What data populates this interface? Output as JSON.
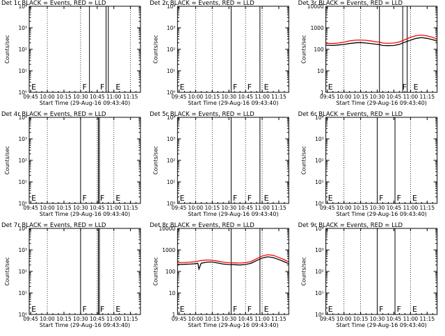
{
  "colors": {
    "background": "#ffffff",
    "axes": "#000000",
    "events": "#000000",
    "lld": "#ff0000",
    "guide": "#000000"
  },
  "chart_data": [
    {
      "type": "line",
      "title": "Det 1r  BLACK = Events, RED = LLD",
      "xlabel": "Start Time (29-Aug-16 09:43:40)",
      "ylabel": "Counts/sec",
      "yscale": "log",
      "ylim": [
        1,
        10000
      ],
      "yticklabels": [
        "10⁰",
        "10¹",
        "10²",
        "10³",
        "10⁴"
      ],
      "xlim": [
        "09:43:40",
        "11:24:00"
      ],
      "xticks": [
        "09:45",
        "10:00",
        "10:15",
        "10:30",
        "10:45",
        "11:00",
        "11:15"
      ],
      "dotted_lines": [
        "10:00",
        "10:30",
        "11:15"
      ],
      "solid_lines": [
        "10:38",
        "10:53",
        "10:55"
      ],
      "markers": [
        {
          "x": "09:45",
          "text": "E"
        },
        {
          "x": "10:31",
          "text": "F"
        },
        {
          "x": "10:47",
          "text": "F"
        },
        {
          "x": "11:01",
          "text": "E"
        }
      ],
      "series": []
    },
    {
      "type": "line",
      "title": "Det 2r  BLACK = Events, RED = LLD",
      "xlabel": "Start Time (29-Aug-16 09:43:40)",
      "ylabel": "Counts/sec",
      "yscale": "log",
      "ylim": [
        1,
        10000
      ],
      "yticklabels": [
        "10⁰",
        "10¹",
        "10²",
        "10³",
        "10⁴"
      ],
      "xlim": [
        "09:43:40",
        "11:24:00"
      ],
      "xticks": [
        "09:45",
        "10:00",
        "10:15",
        "10:30",
        "10:45",
        "11:00",
        "11:15"
      ],
      "dotted_lines": [
        "10:00",
        "10:15",
        "10:45",
        "11:00"
      ],
      "solid_lines": [
        "10:32",
        "10:58"
      ],
      "markers": [
        {
          "x": "09:45",
          "text": "E"
        },
        {
          "x": "10:33",
          "text": "F"
        },
        {
          "x": "10:46",
          "text": "F"
        },
        {
          "x": "11:01",
          "text": "E"
        }
      ],
      "series": []
    },
    {
      "type": "line",
      "title": "Det 3r  BLACK = Events, RED = LLD",
      "xlabel": "Start Time (29-Aug-16 09:43:40)",
      "ylabel": "Counts/sec",
      "yscale": "log",
      "ylim": [
        1,
        10000
      ],
      "yticklabels": [
        "1",
        "10",
        "100",
        "1000",
        "10000"
      ],
      "xlim": [
        "09:43:40",
        "11:24:00"
      ],
      "xticks": [
        "09:45",
        "10:00",
        "10:15",
        "10:30",
        "10:45",
        "11:00",
        "11:15"
      ],
      "dotted_lines": [
        "10:00",
        "10:15",
        "11:00"
      ],
      "solid_lines": [
        "10:32",
        "10:53",
        "10:57"
      ],
      "markers": [
        {
          "x": "09:45",
          "text": "E"
        },
        {
          "x": "10:52",
          "text": "F"
        },
        {
          "x": "11:02",
          "text": "E"
        }
      ],
      "series": [
        {
          "name": "Events",
          "color": "#000000",
          "x": [
            "09:43:40",
            "09:50",
            "09:55",
            "10:00",
            "10:05",
            "10:10",
            "10:15",
            "10:20",
            "10:25",
            "10:30",
            "10:32",
            "10:35",
            "10:40",
            "10:45",
            "10:50",
            "10:55",
            "11:00",
            "11:05",
            "11:10",
            "11:15",
            "11:20",
            "11:24"
          ],
          "y": [
            155,
            150,
            158,
            168,
            185,
            200,
            205,
            195,
            182,
            170,
            165,
            150,
            148,
            150,
            170,
            215,
            265,
            320,
            350,
            320,
            280,
            240
          ]
        },
        {
          "name": "LLD",
          "color": "#ff0000",
          "x": [
            "09:43:40",
            "09:50",
            "09:55",
            "10:00",
            "10:05",
            "10:10",
            "10:15",
            "10:20",
            "10:25",
            "10:30",
            "10:32",
            "10:35",
            "10:40",
            "10:45",
            "10:50",
            "10:55",
            "11:00",
            "11:05",
            "11:10",
            "11:15",
            "11:20",
            "11:24"
          ],
          "y": [
            190,
            185,
            195,
            215,
            245,
            265,
            270,
            260,
            240,
            220,
            215,
            195,
            190,
            195,
            220,
            280,
            360,
            430,
            460,
            420,
            360,
            300
          ]
        }
      ]
    },
    {
      "type": "line",
      "title": "Det 4r  BLACK = Events, RED = LLD",
      "xlabel": "Start Time (29-Aug-16 09:43:40)",
      "ylabel": "Counts/sec",
      "yscale": "log",
      "ylim": [
        1,
        10000
      ],
      "yticklabels": [
        "10⁰",
        "10¹",
        "10²",
        "10³",
        "10⁴"
      ],
      "xlim": [
        "09:43:40",
        "11:24:00"
      ],
      "xticks": [
        "09:45",
        "10:00",
        "10:15",
        "10:30",
        "10:45",
        "11:00",
        "11:15"
      ],
      "dotted_lines": [
        "10:00",
        "10:45",
        "11:00"
      ],
      "solid_lines": [
        "10:30",
        "10:46",
        "10:47"
      ],
      "markers": [
        {
          "x": "09:45",
          "text": "E"
        },
        {
          "x": "10:31",
          "text": "F"
        },
        {
          "x": "10:47",
          "text": "F"
        },
        {
          "x": "11:01",
          "text": "E"
        }
      ],
      "series": []
    },
    {
      "type": "line",
      "title": "Det 5r  BLACK = Events, RED = LLD",
      "xlabel": "Start Time (29-Aug-16 09:43:40)",
      "ylabel": "Counts/sec",
      "yscale": "log",
      "ylim": [
        1,
        10000
      ],
      "yticklabels": [
        "10⁰",
        "10¹",
        "10²",
        "10³",
        "10⁴"
      ],
      "xlim": [
        "09:43:40",
        "11:24:00"
      ],
      "xticks": [
        "09:45",
        "10:00",
        "10:15",
        "10:30",
        "10:45",
        "11:00",
        "11:15"
      ],
      "dotted_lines": [
        "10:00",
        "10:15",
        "10:45",
        "11:00"
      ],
      "solid_lines": [
        "10:32",
        "10:58"
      ],
      "markers": [
        {
          "x": "09:45",
          "text": "E"
        },
        {
          "x": "10:33",
          "text": "F"
        },
        {
          "x": "10:46",
          "text": "F"
        },
        {
          "x": "11:01",
          "text": "E"
        }
      ],
      "series": []
    },
    {
      "type": "line",
      "title": "Det 6r  BLACK = Events, RED = LLD",
      "xlabel": "Start Time (29-Aug-16 09:43:40)",
      "ylabel": "Counts/sec",
      "yscale": "log",
      "ylim": [
        1,
        10000
      ],
      "yticklabels": [
        "10⁰",
        "10¹",
        "10²",
        "10³",
        "10⁴"
      ],
      "xlim": [
        "09:43:40",
        "11:24:00"
      ],
      "xticks": [
        "09:45",
        "10:00",
        "10:15",
        "10:30",
        "10:45",
        "11:00",
        "11:15"
      ],
      "dotted_lines": [
        "10:00",
        "10:15",
        "11:00"
      ],
      "solid_lines": [
        "10:30",
        "10:46"
      ],
      "markers": [
        {
          "x": "09:45",
          "text": "E"
        },
        {
          "x": "10:31",
          "text": "F"
        },
        {
          "x": "10:47",
          "text": "F"
        },
        {
          "x": "11:01",
          "text": "E"
        }
      ],
      "series": []
    },
    {
      "type": "line",
      "title": "Det 7r  BLACK = Events, RED = LLD",
      "xlabel": "Start Time (29-Aug-16 09:43:40)",
      "ylabel": "Counts/sec",
      "yscale": "log",
      "ylim": [
        1,
        10000
      ],
      "yticklabels": [
        "10⁰",
        "10¹",
        "10²",
        "10³",
        "10⁴"
      ],
      "xlim": [
        "09:43:40",
        "11:24:00"
      ],
      "xticks": [
        "09:45",
        "10:00",
        "10:15",
        "10:30",
        "10:45",
        "11:00",
        "11:15"
      ],
      "dotted_lines": [
        "10:00",
        "10:45",
        "11:00"
      ],
      "solid_lines": [
        "10:30",
        "10:46",
        "10:47"
      ],
      "markers": [
        {
          "x": "09:45",
          "text": "E"
        },
        {
          "x": "10:31",
          "text": "F"
        },
        {
          "x": "10:47",
          "text": "F"
        },
        {
          "x": "11:01",
          "text": "E"
        }
      ],
      "series": []
    },
    {
      "type": "line",
      "title": "Det 8r  BLACK = Events, RED = LLD",
      "xlabel": "Start Time (29-Aug-16 09:43:40)",
      "ylabel": "Counts/sec",
      "yscale": "log",
      "ylim": [
        1,
        10000
      ],
      "yticklabels": [
        "1",
        "10",
        "100",
        "1000",
        "10000"
      ],
      "xlim": [
        "09:43:40",
        "11:24:00"
      ],
      "xticks": [
        "09:45",
        "10:00",
        "10:15",
        "10:30",
        "10:45",
        "11:00",
        "11:15"
      ],
      "dotted_lines": [
        "10:00",
        "10:15",
        "10:45",
        "11:00"
      ],
      "solid_lines": [
        "10:32",
        "10:58"
      ],
      "markers": [
        {
          "x": "09:45",
          "text": "E"
        },
        {
          "x": "10:33",
          "text": "F"
        },
        {
          "x": "10:46",
          "text": "F"
        },
        {
          "x": "11:01",
          "text": "E"
        }
      ],
      "series": [
        {
          "name": "Events",
          "color": "#000000",
          "x": [
            "09:43:40",
            "09:50",
            "09:55",
            "10:00",
            "10:02",
            "10:03",
            "10:05",
            "10:10",
            "10:15",
            "10:20",
            "10:25",
            "10:30",
            "10:35",
            "10:40",
            "10:45",
            "10:50",
            "10:55",
            "11:00",
            "11:05",
            "11:10",
            "11:15",
            "11:20",
            "11:24"
          ],
          "y": [
            210,
            215,
            220,
            230,
            240,
            130,
            240,
            270,
            275,
            245,
            220,
            210,
            205,
            200,
            210,
            240,
            320,
            420,
            480,
            440,
            360,
            280,
            230
          ]
        },
        {
          "name": "LLD",
          "color": "#ff0000",
          "x": [
            "09:43:40",
            "09:50",
            "09:55",
            "10:00",
            "10:05",
            "10:10",
            "10:15",
            "10:20",
            "10:25",
            "10:30",
            "10:35",
            "10:40",
            "10:45",
            "10:50",
            "10:55",
            "11:00",
            "11:05",
            "11:10",
            "11:15",
            "11:20",
            "11:24"
          ],
          "y": [
            255,
            260,
            270,
            285,
            320,
            340,
            330,
            300,
            270,
            255,
            250,
            245,
            255,
            290,
            390,
            520,
            600,
            560,
            450,
            350,
            280
          ]
        }
      ]
    },
    {
      "type": "line",
      "title": "Det 9r  BLACK = Events, RED = LLD",
      "xlabel": "Start Time (29-Aug-16 09:43:40)",
      "ylabel": "Counts/sec",
      "yscale": "log",
      "ylim": [
        1,
        10000
      ],
      "yticklabels": [
        "10⁰",
        "10¹",
        "10²",
        "10³",
        "10⁴"
      ],
      "xlim": [
        "09:43:40",
        "11:24:00"
      ],
      "xticks": [
        "09:45",
        "10:00",
        "10:15",
        "10:30",
        "10:45",
        "11:00",
        "11:15"
      ],
      "dotted_lines": [
        "10:00",
        "10:15",
        "11:00"
      ],
      "solid_lines": [
        "10:30",
        "10:46"
      ],
      "markers": [
        {
          "x": "09:45",
          "text": "E"
        },
        {
          "x": "10:31",
          "text": "F"
        },
        {
          "x": "10:47",
          "text": "F"
        },
        {
          "x": "11:01",
          "text": "E"
        }
      ],
      "series": []
    }
  ]
}
